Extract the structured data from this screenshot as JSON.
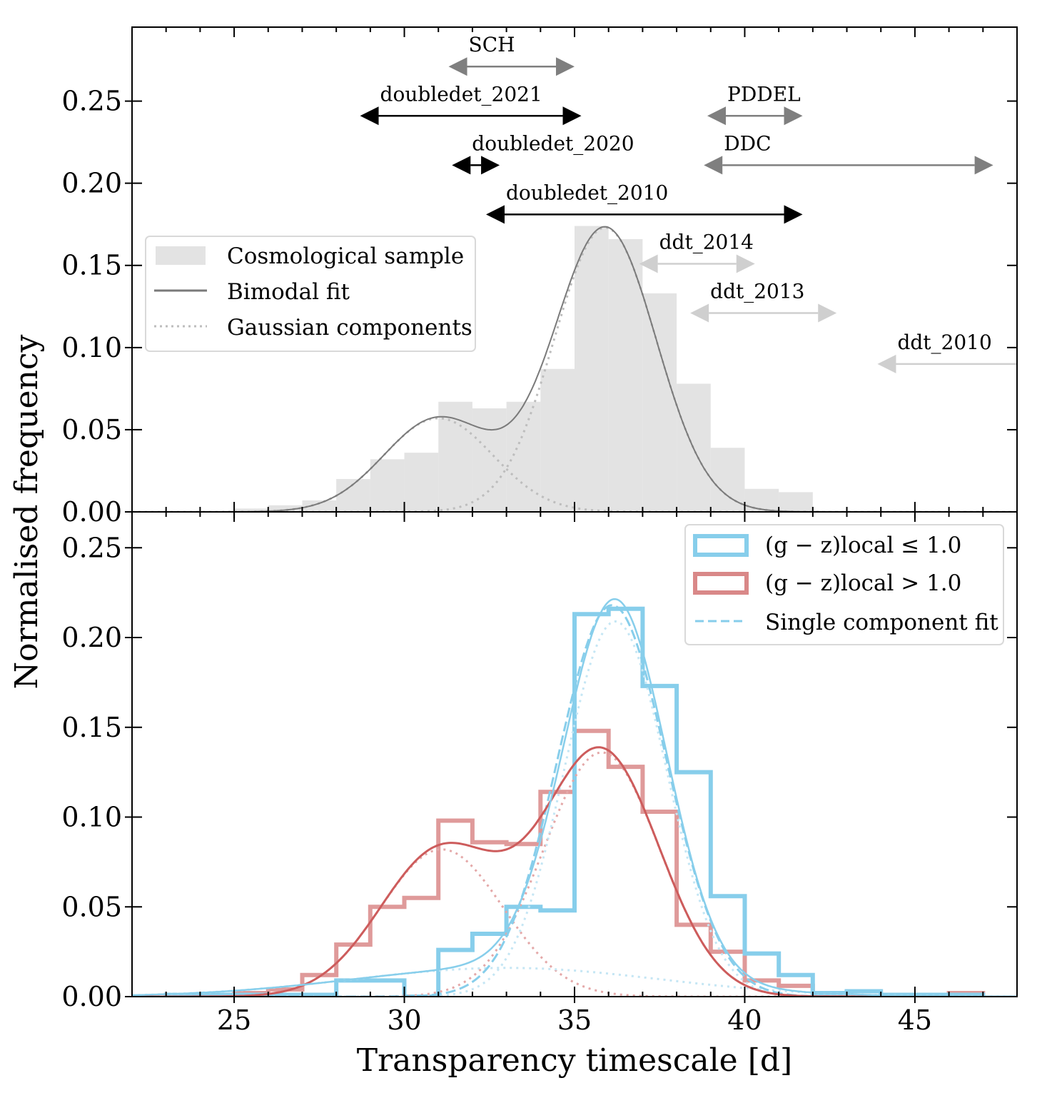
{
  "chart_data": [
    {
      "panel": "top",
      "type": "bar",
      "xlabel": "Transparency timescale [d]",
      "ylabel": "Normalised frequency",
      "xlim": [
        22,
        48
      ],
      "ylim": [
        0,
        0.295
      ],
      "yticks": [
        0.0,
        0.05,
        0.1,
        0.15,
        0.2,
        0.25
      ],
      "ytick_labels": [
        "0.00",
        "0.05",
        "0.10",
        "0.15",
        "0.20",
        "0.25"
      ],
      "legend": {
        "position": "upper-left",
        "entries": [
          "Cosmological sample",
          "Bimodal fit",
          "Gaussian components"
        ]
      },
      "histogram": {
        "name": "Cosmological sample",
        "bin_edges": [
          25,
          26,
          27,
          28,
          29,
          30,
          31,
          32,
          33,
          34,
          35,
          36,
          37,
          38,
          39,
          40,
          41,
          42
        ],
        "values": [
          0.002,
          0.004,
          0.007,
          0.02,
          0.032,
          0.036,
          0.067,
          0.063,
          0.067,
          0.087,
          0.174,
          0.166,
          0.133,
          0.078,
          0.039,
          0.014,
          0.012
        ],
        "color": "#e3e3e3"
      },
      "bimodal_fit": {
        "name": "Bimodal fit",
        "color": "#7a7a7a",
        "components": [
          {
            "amplitude": 0.057,
            "mean": 31.0,
            "sigma": 1.6
          },
          {
            "amplitude": 0.173,
            "mean": 35.9,
            "sigma": 1.5
          }
        ]
      },
      "annotations": [
        {
          "label": "SCH",
          "xmin": 31.3,
          "xmax": 35.0,
          "y": 0.271,
          "color": "#7f7f7f",
          "direction": "both"
        },
        {
          "label": "doubledet_2021",
          "xmin": 28.7,
          "xmax": 35.2,
          "y": 0.241,
          "color": "#000000",
          "direction": "both"
        },
        {
          "label": "PDDEL",
          "xmin": 38.9,
          "xmax": 41.7,
          "y": 0.241,
          "color": "#7f7f7f",
          "direction": "both"
        },
        {
          "label": "doubledet_2020",
          "xmin": 31.4,
          "xmax": 32.8,
          "y": 0.211,
          "color": "#000000",
          "direction": "both"
        },
        {
          "label": "DDC",
          "xmin": 38.8,
          "xmax": 47.3,
          "y": 0.211,
          "color": "#7f7f7f",
          "direction": "both"
        },
        {
          "label": "doubledet_2010",
          "xmin": 32.4,
          "xmax": 41.7,
          "y": 0.181,
          "color": "#000000",
          "direction": "both"
        },
        {
          "label": "ddt_2014",
          "xmin": 36.9,
          "xmax": 40.3,
          "y": 0.151,
          "color": "#cfcfcf",
          "direction": "both"
        },
        {
          "label": "ddt_2013",
          "xmin": 38.4,
          "xmax": 42.7,
          "y": 0.121,
          "color": "#cfcfcf",
          "direction": "both"
        },
        {
          "label": "ddt_2010",
          "xmin": 43.9,
          "xmax": 48.0,
          "y": 0.09,
          "color": "#cfcfcf",
          "direction": "left"
        }
      ]
    },
    {
      "panel": "bottom",
      "type": "step",
      "xlim": [
        22,
        48
      ],
      "ylim": [
        0,
        0.27
      ],
      "xticks": [
        25,
        30,
        35,
        40,
        45
      ],
      "xtick_labels": [
        "25",
        "30",
        "35",
        "40",
        "45"
      ],
      "yticks": [
        0.0,
        0.05,
        0.1,
        0.15,
        0.2,
        0.25
      ],
      "ytick_labels": [
        "0.00",
        "0.05",
        "0.10",
        "0.15",
        "0.20",
        "0.25"
      ],
      "legend": {
        "position": "upper-right",
        "entries": [
          "(g − z)local ≤ 1.0",
          "(g − z)local > 1.0",
          "Single component fit"
        ]
      },
      "series": [
        {
          "name": "(g − z)local ≤ 1.0",
          "color": "#87ceeb",
          "bin_edges": [
            23,
            24,
            25,
            26,
            27,
            28,
            29,
            30,
            31,
            32,
            33,
            34,
            35,
            36,
            37,
            38,
            39,
            40,
            41,
            42,
            43,
            44,
            45,
            46,
            47
          ],
          "values": [
            0.001,
            0.001,
            0.001,
            0.001,
            0.001,
            0.009,
            0.009,
            0.0,
            0.026,
            0.035,
            0.05,
            0.048,
            0.213,
            0.216,
            0.173,
            0.125,
            0.056,
            0.024,
            0.012,
            0.002,
            0.003,
            0.001,
            0.001,
            0.001
          ],
          "fit_components": [
            {
              "amplitude": 0.016,
              "mean": 33.0,
              "sigma": 4.5
            },
            {
              "amplitude": 0.209,
              "mean": 36.2,
              "sigma": 1.5
            }
          ],
          "single_component": {
            "amplitude": 0.218,
            "mean": 36.1,
            "sigma": 1.6
          }
        },
        {
          "name": "(g − z)local > 1.0",
          "color": "#cd5c5c",
          "bin_edges": [
            25,
            26,
            27,
            28,
            29,
            30,
            31,
            32,
            33,
            34,
            35,
            36,
            37,
            38,
            39,
            40,
            41,
            42,
            43,
            44,
            45,
            46,
            47
          ],
          "values": [
            0.002,
            0.004,
            0.012,
            0.029,
            0.05,
            0.055,
            0.098,
            0.086,
            0.085,
            0.114,
            0.148,
            0.128,
            0.103,
            0.04,
            0.025,
            0.009,
            0.006,
            0.001,
            0.0,
            0.0,
            0.0,
            0.002
          ],
          "fit_components": [
            {
              "amplitude": 0.082,
              "mean": 31.1,
              "sigma": 1.8
            },
            {
              "amplitude": 0.136,
              "mean": 35.8,
              "sigma": 1.7
            }
          ]
        }
      ]
    }
  ]
}
